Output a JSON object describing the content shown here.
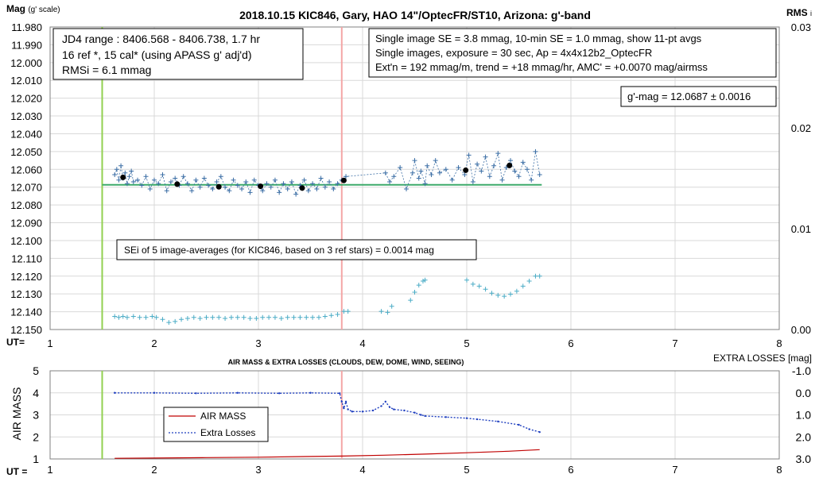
{
  "chart_data": [
    {
      "type": "scatter",
      "title": "2018.10.15 KIC846, Gary, HAO 14\"/OptecFR/ST10, Arizona: g'-band",
      "ylabel": "Mag",
      "ylabel_note": "(g' scale)",
      "y2label": "RMS",
      "y2label_sub": "i",
      "xlabel": "UT=",
      "xlim": [
        1,
        8
      ],
      "ylim": [
        11.98,
        12.15
      ],
      "y_inverted": true,
      "y2lim": [
        0.0,
        0.03
      ],
      "x_ticks": [
        "1",
        "2",
        "3",
        "4",
        "5",
        "6",
        "7",
        "8"
      ],
      "y_ticks": [
        "11.980",
        "11.990",
        "12.000",
        "12.010",
        "12.020",
        "12.030",
        "12.040",
        "12.050",
        "12.060",
        "12.070",
        "12.080",
        "12.090",
        "12.100",
        "12.110",
        "12.120",
        "12.130",
        "12.140",
        "12.150"
      ],
      "y2_ticks": [
        "0.03",
        "0.02",
        "0.01",
        "0.00"
      ],
      "grid": true,
      "annotations": {
        "box_left": [
          "JD4 range : 8406.568 - 8406.738,  1.7  hr",
          "16 ref *, 15 cal* (using APASS g' adj'd)",
          "RMSi = 6.1 mmag"
        ],
        "box_right": [
          "Single image SE = 3.8 mmag, 10-min SE = 1.0 mmag, show  11-pt avgs",
          "Single images, exposure = 30 sec, Ap = 4x4x12b2_OptecFR",
          "Ext'n = 192 mmag/m, trend =  +18 mmag/hr, AMC' = +0.0070 mag/airmss"
        ],
        "gmag": "g'-mag = 12.0687 ± 0.0016",
        "sei": "SEi of 5 image-averages (for KIC846, based on 3 ref stars) = 0.0014 mag"
      },
      "vlines": [
        {
          "x": 1.5,
          "color": "#92d050"
        },
        {
          "x": 3.8,
          "color": "#f4a6a6"
        }
      ],
      "hline": {
        "y": 12.0687,
        "x": [
          1.5,
          5.72
        ],
        "color": "#3daa6a"
      },
      "series": [
        {
          "marker": "cross",
          "color": "#3b6ea5",
          "x": [
            1.62,
            1.64,
            1.66,
            1.68,
            1.7,
            1.72,
            1.74,
            1.76,
            1.78,
            1.8,
            1.84,
            1.88,
            1.92,
            1.96,
            2.0,
            2.04,
            2.08,
            2.12,
            2.16,
            2.2,
            2.24,
            2.28,
            2.32,
            2.36,
            2.4,
            2.44,
            2.48,
            2.52,
            2.56,
            2.6,
            2.64,
            2.68,
            2.72,
            2.76,
            2.8,
            2.84,
            2.88,
            2.92,
            2.96,
            3.0,
            3.04,
            3.08,
            3.12,
            3.16,
            3.2,
            3.24,
            3.28,
            3.32,
            3.36,
            3.4,
            3.44,
            3.48,
            3.52,
            3.56,
            3.6,
            3.64,
            3.68,
            3.72,
            3.76,
            3.8,
            3.84,
            4.22,
            4.26,
            4.3,
            4.36,
            4.42,
            4.48,
            4.5,
            4.54,
            4.56,
            4.6,
            4.62,
            4.66,
            4.7,
            4.74,
            4.8,
            4.86,
            4.92,
            4.98,
            5.02,
            5.06,
            5.1,
            5.14,
            5.18,
            5.22,
            5.26,
            5.3,
            5.34,
            5.38,
            5.42,
            5.46,
            5.5,
            5.54,
            5.58,
            5.62,
            5.66,
            5.7
          ],
          "y": [
            12.063,
            12.06,
            12.066,
            12.058,
            12.065,
            12.062,
            12.068,
            12.064,
            12.061,
            12.067,
            12.066,
            12.069,
            12.064,
            12.071,
            12.066,
            12.068,
            12.063,
            12.072,
            12.067,
            12.065,
            12.069,
            12.064,
            12.068,
            12.072,
            12.066,
            12.07,
            12.065,
            12.069,
            12.071,
            12.067,
            12.064,
            12.07,
            12.072,
            12.066,
            12.069,
            12.071,
            12.067,
            12.073,
            12.066,
            12.069,
            12.072,
            12.068,
            12.07,
            12.066,
            12.073,
            12.068,
            12.071,
            12.067,
            12.074,
            12.069,
            12.066,
            12.072,
            12.068,
            12.071,
            12.065,
            12.07,
            12.067,
            12.071,
            12.068,
            12.066,
            12.064,
            12.062,
            12.067,
            12.064,
            12.059,
            12.071,
            12.062,
            12.055,
            12.065,
            12.061,
            12.068,
            12.058,
            12.063,
            12.055,
            12.062,
            12.06,
            12.066,
            12.059,
            12.063,
            12.052,
            12.067,
            12.057,
            12.061,
            12.053,
            12.064,
            12.058,
            12.051,
            12.066,
            12.059,
            12.055,
            12.061,
            12.064,
            12.056,
            12.06,
            12.066,
            12.05,
            12.063
          ]
        },
        {
          "marker": "dot",
          "color": "#000000",
          "x": [
            1.7,
            2.22,
            2.62,
            3.02,
            3.42,
            3.82,
            4.99,
            5.41
          ],
          "y": [
            12.0645,
            12.0683,
            12.0698,
            12.0695,
            12.0705,
            12.0662,
            12.0605,
            12.0578
          ]
        },
        {
          "name": "RMS",
          "marker": "cross",
          "axis": "y2",
          "color": "#4bacc6",
          "x": [
            1.62,
            1.66,
            1.7,
            1.74,
            1.8,
            1.86,
            1.92,
            1.98,
            2.02,
            2.08,
            2.14,
            2.2,
            2.26,
            2.32,
            2.38,
            2.44,
            2.5,
            2.56,
            2.62,
            2.68,
            2.74,
            2.8,
            2.86,
            2.92,
            2.98,
            3.04,
            3.1,
            3.16,
            3.22,
            3.28,
            3.34,
            3.4,
            3.46,
            3.52,
            3.58,
            3.64,
            3.7,
            3.76,
            3.82,
            3.86,
            4.18,
            4.24,
            4.28,
            4.46,
            4.5,
            4.54,
            4.58,
            4.6,
            5.0,
            5.06,
            5.12,
            5.18,
            5.24,
            5.3,
            5.36,
            5.42,
            5.48,
            5.54,
            5.6,
            5.66,
            5.7
          ],
          "y": [
            0.0013,
            0.0012,
            0.0013,
            0.0012,
            0.0013,
            0.0012,
            0.0012,
            0.0013,
            0.0012,
            0.001,
            0.0007,
            0.0008,
            0.001,
            0.0011,
            0.0012,
            0.0011,
            0.0012,
            0.0012,
            0.0012,
            0.0011,
            0.0012,
            0.0012,
            0.0012,
            0.0011,
            0.0011,
            0.0012,
            0.0012,
            0.0012,
            0.0011,
            0.0012,
            0.0012,
            0.0012,
            0.0012,
            0.0012,
            0.0012,
            0.0013,
            0.0014,
            0.0015,
            0.0018,
            0.0018,
            0.0018,
            0.0017,
            0.0023,
            0.0029,
            0.0037,
            0.0044,
            0.0048,
            0.0049,
            0.0049,
            0.0045,
            0.0043,
            0.004,
            0.0036,
            0.0034,
            0.0033,
            0.0035,
            0.0038,
            0.0043,
            0.0048,
            0.0053,
            0.0053
          ]
        }
      ]
    },
    {
      "type": "line",
      "title": "AIR MASS & EXTRA LOSSES (CLOUDS, DEW, DOME, WIND, SEEING)",
      "ylabel": "AIR MASS",
      "y2label": "EXTRA LOSSES [mag]",
      "xlabel": "UT =",
      "xlim": [
        1,
        8
      ],
      "ylim": [
        1,
        5
      ],
      "y2lim": [
        -1.0,
        3.0
      ],
      "y2_inverted": true,
      "x_ticks": [
        "1",
        "2",
        "3",
        "4",
        "5",
        "6",
        "7",
        "8"
      ],
      "y_ticks": [
        "5",
        "4",
        "3",
        "2",
        "1"
      ],
      "y2_ticks": [
        "-1.0",
        "0.0",
        "1.0",
        "2.0",
        "3.0"
      ],
      "grid": true,
      "legend_placement": "center-left",
      "vlines": [
        {
          "x": 1.5,
          "color": "#92d050"
        },
        {
          "x": 3.8,
          "color": "#f4a6a6"
        }
      ],
      "series": [
        {
          "name": "AIR MASS",
          "axis": "y",
          "style": "solid",
          "color": "#c00000",
          "x": [
            1.62,
            2.0,
            2.5,
            3.0,
            3.5,
            3.8,
            4.2,
            4.6,
            5.0,
            5.4,
            5.7
          ],
          "y": [
            1.03,
            1.04,
            1.06,
            1.08,
            1.11,
            1.13,
            1.17,
            1.22,
            1.28,
            1.35,
            1.42
          ]
        },
        {
          "name": "Extra Losses",
          "axis": "y2",
          "style": "dotted",
          "color": "#1f3fbf",
          "x": [
            1.62,
            2.0,
            2.4,
            2.8,
            3.2,
            3.5,
            3.78,
            3.8,
            3.82,
            3.84,
            3.86,
            3.9,
            4.0,
            4.1,
            4.18,
            4.22,
            4.26,
            4.3,
            4.4,
            4.5,
            4.56,
            4.6,
            4.8,
            5.0,
            5.1,
            5.3,
            5.5,
            5.6,
            5.7
          ],
          "y": [
            0.0,
            0.0,
            0.02,
            0.0,
            0.02,
            0.0,
            0.02,
            0.4,
            0.7,
            0.4,
            0.75,
            0.85,
            0.85,
            0.8,
            0.6,
            0.4,
            0.65,
            0.75,
            0.8,
            0.9,
            1.0,
            1.05,
            1.1,
            1.15,
            1.2,
            1.3,
            1.45,
            1.65,
            1.78
          ]
        }
      ]
    }
  ]
}
